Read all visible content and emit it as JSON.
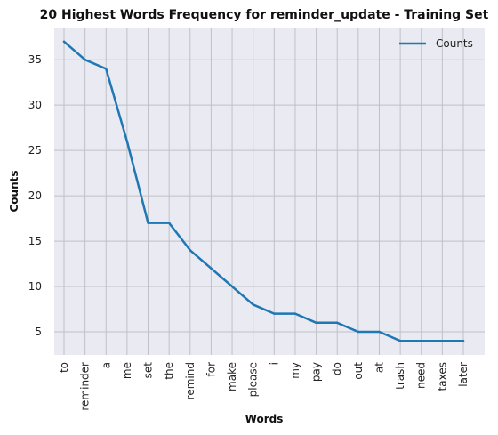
{
  "chart_data": {
    "type": "line",
    "title": "20 Highest Words Frequency for reminder_update - Training Set",
    "xlabel": "Words",
    "ylabel": "Counts",
    "categories": [
      "to",
      "reminder",
      "a",
      "me",
      "set",
      "the",
      "remind",
      "for",
      "make",
      "please",
      "i",
      "my",
      "pay",
      "do",
      "out",
      "at",
      "trash",
      "need",
      "taxes",
      "later"
    ],
    "series": [
      {
        "name": "Counts",
        "values": [
          37,
          35,
          34,
          26,
          17,
          17,
          14,
          12,
          10,
          8,
          7,
          7,
          6,
          6,
          5,
          5,
          4,
          4,
          4,
          4
        ]
      }
    ],
    "yticks": [
      5,
      10,
      15,
      20,
      25,
      30,
      35
    ],
    "ylim": [
      2.45,
      38.55
    ],
    "grid": true,
    "legend_position": "top-right",
    "colors": {
      "line": "#1f77b4",
      "plot_bg": "#eaeaf2",
      "grid": "#c0c0c6"
    }
  }
}
